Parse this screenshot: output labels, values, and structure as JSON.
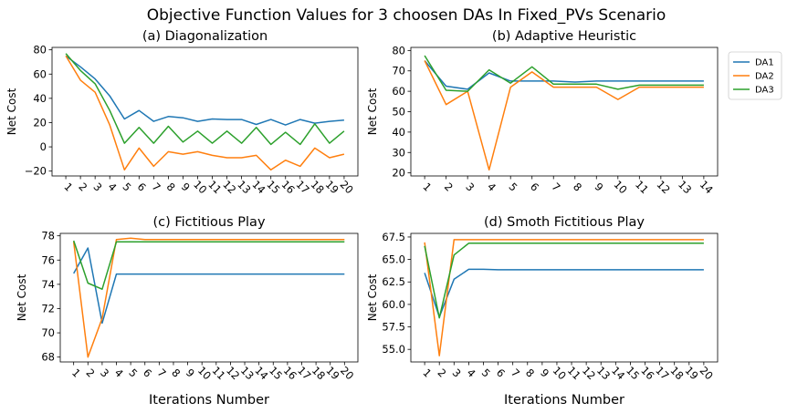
{
  "figure_title": "Objective Function Values for 3 choosen DAs In Fixed_PVs Scenario",
  "colors": {
    "DA1": "#1f77b4",
    "DA2": "#ff7f0e",
    "DA3": "#2ca02c"
  },
  "chart_data": [
    {
      "type": "line",
      "title": "(a) Diagonalization",
      "xlabel": "",
      "ylabel": "Net Cost",
      "x": [
        1,
        2,
        3,
        4,
        5,
        6,
        7,
        8,
        9,
        10,
        11,
        12,
        13,
        14,
        15,
        16,
        17,
        18,
        19,
        20
      ],
      "ylim": [
        -24,
        82
      ],
      "yticks": [
        -20,
        0,
        20,
        40,
        60,
        80
      ],
      "ytick_labels": [
        "−20",
        "0",
        "20",
        "40",
        "60",
        "80"
      ],
      "series": [
        {
          "name": "DA1",
          "values": [
            75,
            66,
            56,
            42,
            23,
            30,
            21,
            25,
            24,
            21,
            23,
            22.5,
            22.5,
            18.5,
            22.5,
            18,
            22.5,
            19.5,
            21,
            22
          ]
        },
        {
          "name": "DA2",
          "values": [
            75,
            55,
            45,
            18,
            -19,
            -1,
            -16,
            -4,
            -6,
            -4,
            -7,
            -9,
            -9,
            -7,
            -19,
            -11,
            -16,
            -1,
            -9,
            -6
          ]
        },
        {
          "name": "DA3",
          "values": [
            77,
            63,
            52,
            30,
            3,
            16,
            3,
            17,
            4,
            13,
            3,
            13,
            3,
            16,
            2,
            12,
            2,
            19,
            3,
            13
          ]
        }
      ]
    },
    {
      "type": "line",
      "title": "(b) Adaptive Heuristic",
      "xlabel": "",
      "ylabel": "Net Cost",
      "x": [
        1,
        2,
        3,
        4,
        5,
        6,
        7,
        8,
        9,
        10,
        11,
        12,
        13,
        14
      ],
      "ylim": [
        18.5,
        81.5
      ],
      "yticks": [
        20,
        30,
        40,
        50,
        60,
        70,
        80
      ],
      "ytick_labels": [
        "20",
        "30",
        "40",
        "50",
        "60",
        "70",
        "80"
      ],
      "legend": {
        "position": "outside-right",
        "entries": [
          "DA1",
          "DA2",
          "DA3"
        ]
      },
      "series": [
        {
          "name": "DA1",
          "values": [
            75,
            62.5,
            61,
            69,
            65,
            65,
            65,
            64.5,
            65,
            65,
            65,
            65,
            65,
            65
          ]
        },
        {
          "name": "DA2",
          "values": [
            75,
            53.5,
            60,
            21.5,
            62,
            69.5,
            62,
            62,
            62,
            56,
            62,
            62,
            62,
            62
          ]
        },
        {
          "name": "DA3",
          "values": [
            77.5,
            60.5,
            60,
            70.5,
            64,
            72,
            63.5,
            63.5,
            63.5,
            61,
            63,
            63,
            63,
            63
          ]
        }
      ]
    },
    {
      "type": "line",
      "title": "(c) Fictitious Play",
      "xlabel": "Iterations Number",
      "ylabel": "Net Cost",
      "x": [
        1,
        2,
        3,
        4,
        5,
        6,
        7,
        8,
        9,
        10,
        11,
        12,
        13,
        14,
        15,
        16,
        17,
        18,
        19,
        20
      ],
      "ylim": [
        67.6,
        78.2
      ],
      "yticks": [
        68,
        70,
        72,
        74,
        76,
        78
      ],
      "ytick_labels": [
        "68",
        "70",
        "72",
        "74",
        "76",
        "78"
      ],
      "series": [
        {
          "name": "DA1",
          "values": [
            74.9,
            77.0,
            70.8,
            74.85,
            74.85,
            74.85,
            74.85,
            74.85,
            74.85,
            74.85,
            74.85,
            74.85,
            74.85,
            74.85,
            74.85,
            74.85,
            74.85,
            74.85,
            74.85,
            74.85
          ]
        },
        {
          "name": "DA2",
          "values": [
            77.5,
            68.0,
            71.2,
            77.7,
            77.8,
            77.7,
            77.7,
            77.7,
            77.7,
            77.7,
            77.7,
            77.7,
            77.7,
            77.7,
            77.7,
            77.7,
            77.7,
            77.7,
            77.7,
            77.7
          ]
        },
        {
          "name": "DA3",
          "values": [
            77.6,
            74.1,
            73.6,
            77.5,
            77.5,
            77.5,
            77.5,
            77.5,
            77.5,
            77.5,
            77.5,
            77.5,
            77.5,
            77.5,
            77.5,
            77.5,
            77.5,
            77.5,
            77.5,
            77.5
          ]
        }
      ]
    },
    {
      "type": "line",
      "title": "(d) Smoth Fictitious Play",
      "xlabel": "Iterations Number",
      "ylabel": "Net Cost",
      "x": [
        1,
        2,
        3,
        4,
        5,
        6,
        7,
        8,
        9,
        10,
        11,
        12,
        13,
        14,
        15,
        16,
        17,
        18,
        19,
        20
      ],
      "ylim": [
        53.6,
        67.9
      ],
      "yticks": [
        55.0,
        57.5,
        60.0,
        62.5,
        65.0,
        67.5
      ],
      "ytick_labels": [
        "55.0",
        "57.5",
        "60.0",
        "62.5",
        "65.0",
        "67.5"
      ],
      "series": [
        {
          "name": "DA1",
          "values": [
            63.5,
            58.6,
            62.8,
            63.9,
            63.9,
            63.85,
            63.85,
            63.85,
            63.85,
            63.85,
            63.85,
            63.85,
            63.85,
            63.85,
            63.85,
            63.85,
            63.85,
            63.85,
            63.85,
            63.85
          ]
        },
        {
          "name": "DA2",
          "values": [
            66.9,
            54.3,
            67.2,
            67.2,
            67.2,
            67.2,
            67.2,
            67.2,
            67.2,
            67.2,
            67.2,
            67.2,
            67.2,
            67.2,
            67.2,
            67.2,
            67.2,
            67.2,
            67.2,
            67.2
          ]
        },
        {
          "name": "DA3",
          "values": [
            66.5,
            58.5,
            65.5,
            66.8,
            66.8,
            66.8,
            66.8,
            66.8,
            66.8,
            66.8,
            66.8,
            66.8,
            66.8,
            66.8,
            66.8,
            66.8,
            66.8,
            66.8,
            66.8,
            66.8
          ]
        }
      ]
    }
  ]
}
